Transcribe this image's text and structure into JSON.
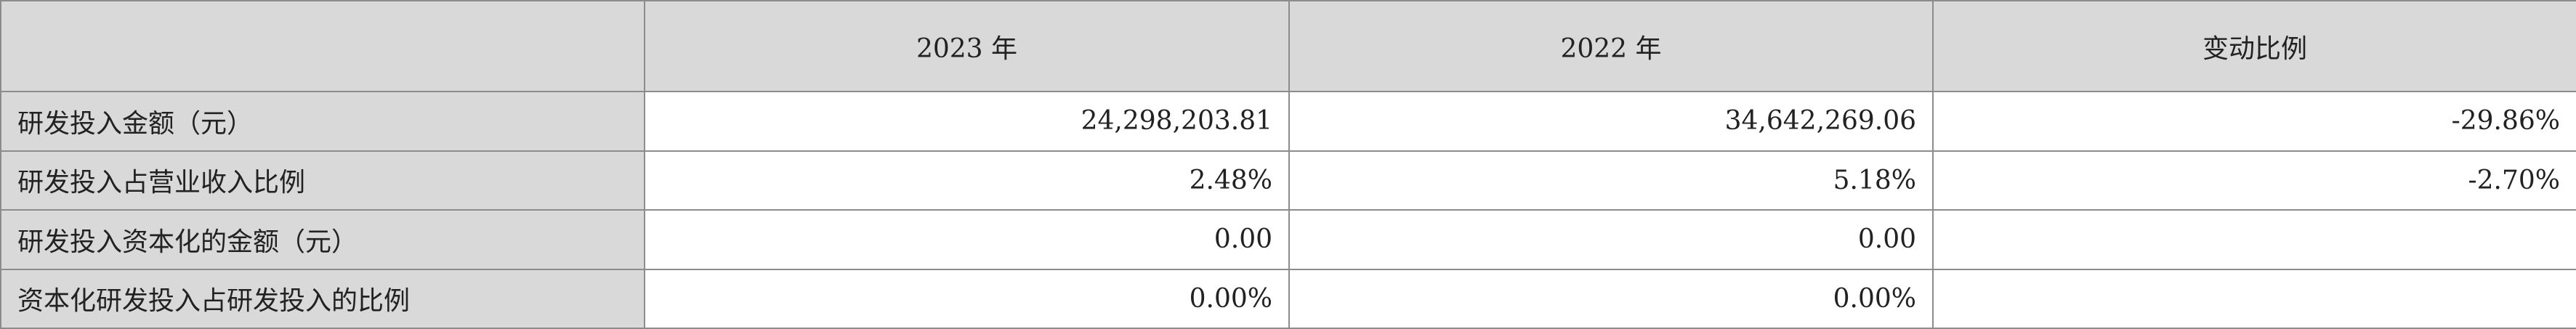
{
  "table": {
    "header": [
      "2023 年",
      "2022 年",
      "变动比例"
    ],
    "rows": [
      [
        "研发投入金额（元）",
        "24,298,203.81",
        "34,642,269.06",
        "-29.86%"
      ],
      [
        "研发投入占营业收入比例",
        "2.48%",
        "5.18%",
        "-2.70%"
      ],
      [
        "研发投入资本化的金额（元）",
        "0.00",
        "0.00",
        null
      ],
      [
        "资本化研发投入占研发投入的比例",
        "0.00%",
        "0.00%",
        null
      ]
    ]
  }
}
